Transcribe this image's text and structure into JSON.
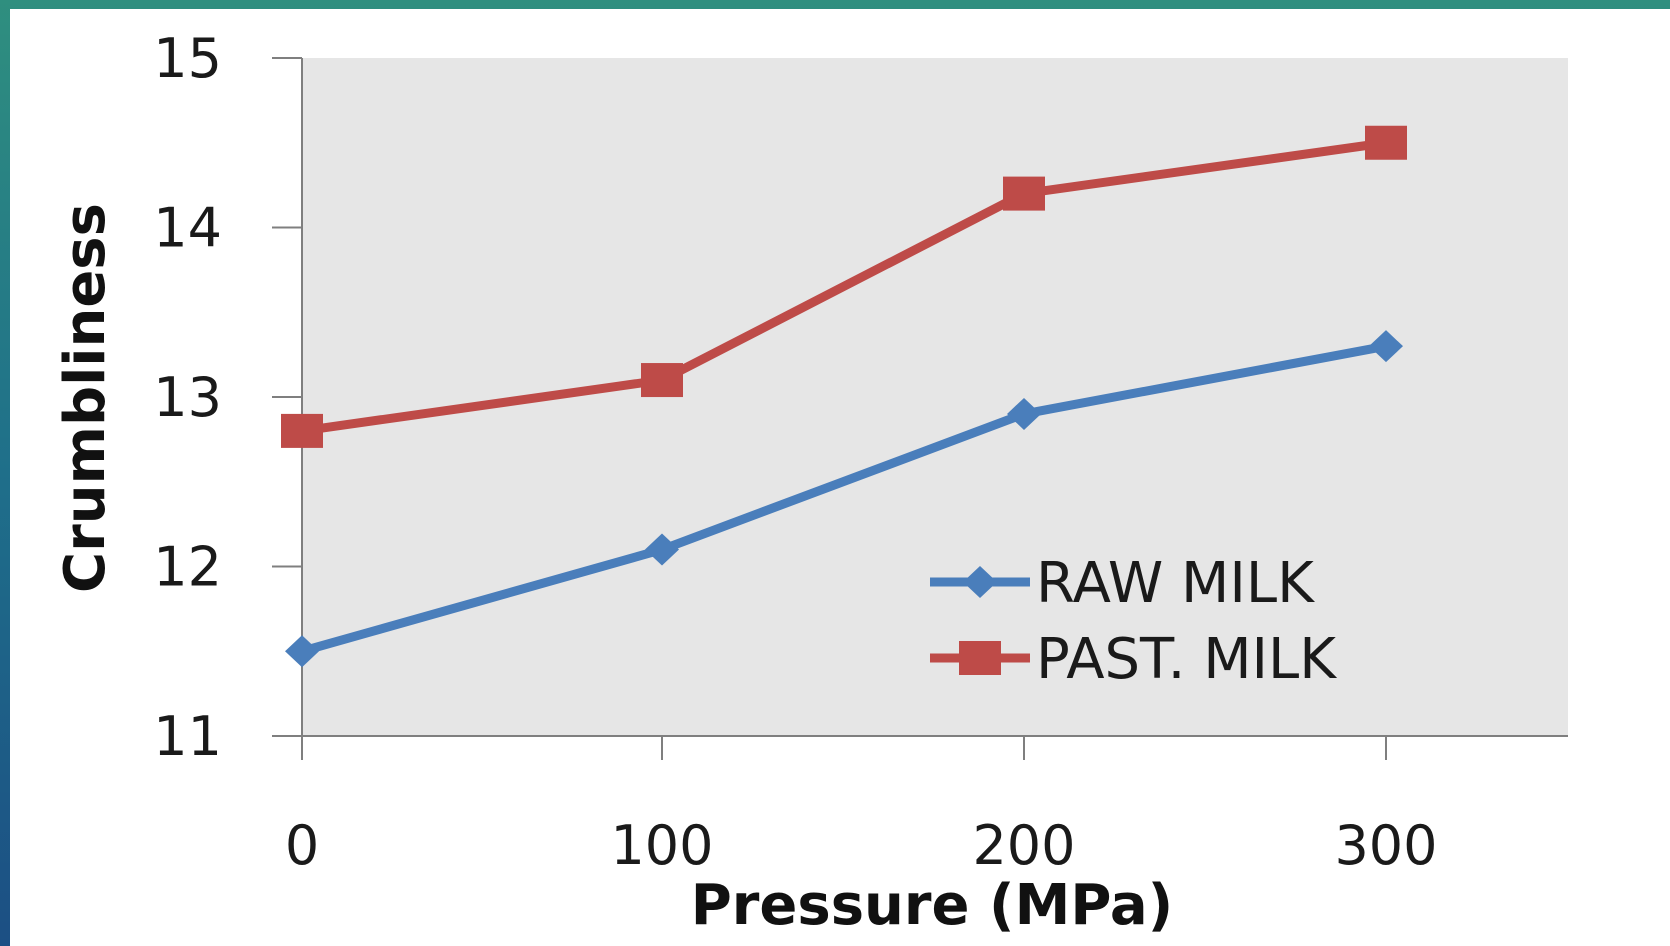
{
  "chart_data": {
    "type": "line",
    "x": [
      0,
      100,
      200,
      300
    ],
    "xlabel": "Pressure (MPa)",
    "ylabel": "Crumbliness",
    "ylim": [
      11,
      15
    ],
    "yticks": [
      11,
      12,
      13,
      14,
      15
    ],
    "xticks": [
      0,
      100,
      200,
      300
    ],
    "grid": false,
    "legend_position": "bottom-right",
    "series": [
      {
        "name": "RAW MILK",
        "values": [
          11.5,
          12.1,
          12.9,
          13.3
        ],
        "color": "#4a7ebb",
        "marker": "diamond"
      },
      {
        "name": "PAST. MILK",
        "values": [
          12.8,
          13.1,
          14.2,
          14.5
        ],
        "color": "#be4b48",
        "marker": "square"
      }
    ],
    "plot_background": "#e6e6e6"
  }
}
